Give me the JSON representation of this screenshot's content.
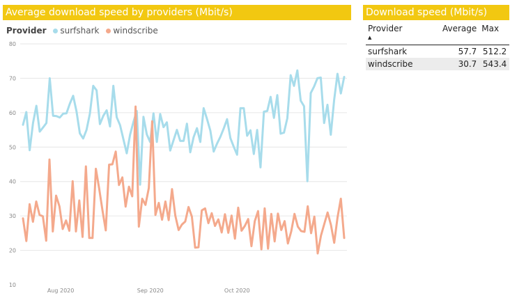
{
  "chart_title": "Average download speed by providers (Mbit/s)",
  "legend": {
    "label": "Provider",
    "items": [
      "surfshark",
      "windscribe"
    ]
  },
  "table": {
    "title": "Download speed (Mbit/s)",
    "headers": [
      "Provider",
      "Average",
      "Max"
    ],
    "sort_icon": "sort-ascending-icon",
    "rows": [
      {
        "provider": "surfshark",
        "average": "57.7",
        "max": "512.2"
      },
      {
        "provider": "windscribe",
        "average": "30.7",
        "max": "543.4"
      }
    ]
  },
  "chart_data": {
    "type": "line",
    "title": "Average download speed by providers (Mbit/s)",
    "xlabel": "",
    "ylabel": "",
    "ylim": [
      10,
      80
    ],
    "yticks": [
      10,
      20,
      30,
      40,
      50,
      60,
      70,
      80
    ],
    "xticks": [
      "Aug 2020",
      "Sep 2020",
      "Oct 2020"
    ],
    "x_start": "2020-07-18",
    "x_end": "2020-11-08",
    "colors": {
      "surfshark": "#A7DCEB",
      "windscribe": "#F4A98C"
    },
    "series": [
      {
        "name": "surfshark",
        "values": [
          56.5,
          60.2,
          49.1,
          57.0,
          62.0,
          54.5,
          55.7,
          57.0,
          70.0,
          59.1,
          59.0,
          58.6,
          59.7,
          59.8,
          62.6,
          64.9,
          60.4,
          54.0,
          52.5,
          55.0,
          59.7,
          67.8,
          66.5,
          56.7,
          59.1,
          60.7,
          56.0,
          67.8,
          58.7,
          56.4,
          52.3,
          48.2,
          53.6,
          57.3,
          60.5,
          39.1,
          58.8,
          53.7,
          51.5,
          59.8,
          51.5,
          59.6,
          55.8,
          57.2,
          49.0,
          52.0,
          55.0,
          51.8,
          51.8,
          56.8,
          48.5,
          52.9,
          55.5,
          51.5,
          61.3,
          58.2,
          54.8,
          48.7,
          51.0,
          53.0,
          55.4,
          58.1,
          52.6,
          50.1,
          47.8,
          61.3,
          61.3,
          53.3,
          54.9,
          48.0,
          55.0,
          44.1,
          60.3,
          60.5,
          64.6,
          58.5,
          65.1,
          53.9,
          54.2,
          58.4,
          70.9,
          67.8,
          72.3,
          63.5,
          61.9,
          40.1,
          65.7,
          67.6,
          70.0,
          70.2,
          57.0,
          62.3,
          53.6,
          63.7,
          71.3,
          65.6,
          70.4
        ]
      },
      {
        "name": "windscribe",
        "values": [
          29.3,
          22.7,
          33.4,
          28.3,
          34.2,
          30.3,
          29.9,
          22.8,
          46.4,
          25.5,
          35.9,
          32.8,
          26.2,
          28.7,
          25.7,
          40.1,
          25.5,
          34.5,
          23.9,
          44.4,
          23.6,
          23.6,
          43.7,
          38.0,
          31.6,
          25.8,
          44.9,
          45.0,
          48.7,
          39.0,
          41.2,
          32.7,
          38.5,
          35.7,
          61.8,
          26.9,
          35.0,
          33.2,
          38.1,
          57.5,
          30.3,
          33.8,
          28.9,
          34.2,
          28.8,
          37.8,
          30.1,
          25.9,
          27.5,
          28.4,
          32.6,
          29.8,
          20.8,
          20.9,
          31.6,
          32.2,
          27.9,
          30.8,
          27.1,
          29.0,
          25.2,
          30.5,
          25.1,
          30.1,
          23.4,
          32.4,
          25.7,
          27.1,
          29.1,
          21.2,
          28.5,
          31.4,
          20.3,
          32.2,
          20.5,
          30.6,
          22.6,
          30.7,
          25.9,
          28.5,
          22.0,
          25.5,
          30.6,
          26.9,
          25.6,
          25.4,
          32.8,
          25.0,
          29.8,
          19.1,
          24.3,
          27.7,
          31.0,
          27.4,
          22.2,
          29.6,
          35.0,
          23.6
        ]
      }
    ]
  }
}
